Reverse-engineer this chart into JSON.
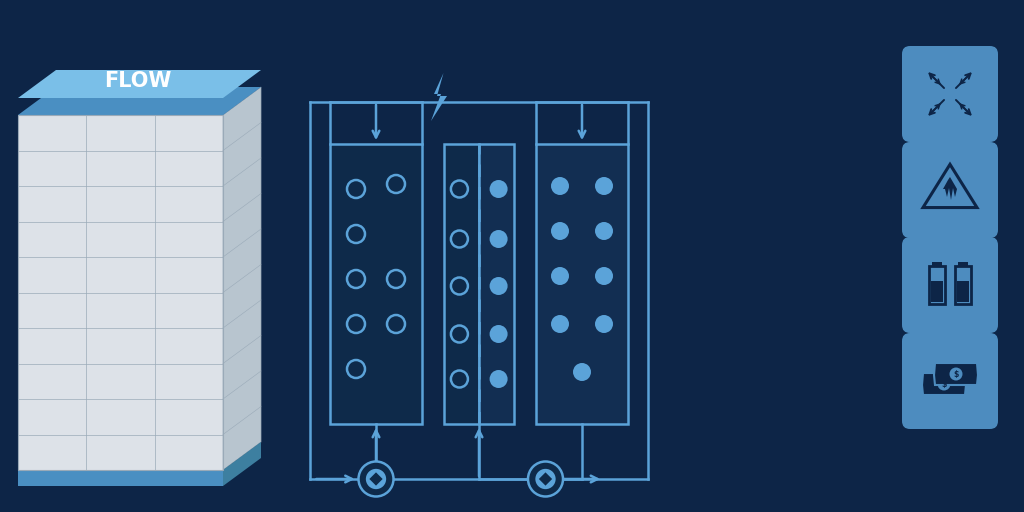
{
  "bg_color": "#0d2547",
  "dc": "#5ba3d9",
  "dc2": "#4a8fc2",
  "icon_bg": "#4d8cbf",
  "batt_top": "#7abfe8",
  "batt_body": "#dde2e8",
  "batt_base": "#4a8fc2",
  "batt_right": "#b8c5cf",
  "grid_color": "#9aaab8",
  "dark_fill": "#0e2a4a",
  "mid_fill": "#122e52",
  "title": "FLOW",
  "lw_main": 1.8,
  "icon_ic": "#0d2547"
}
